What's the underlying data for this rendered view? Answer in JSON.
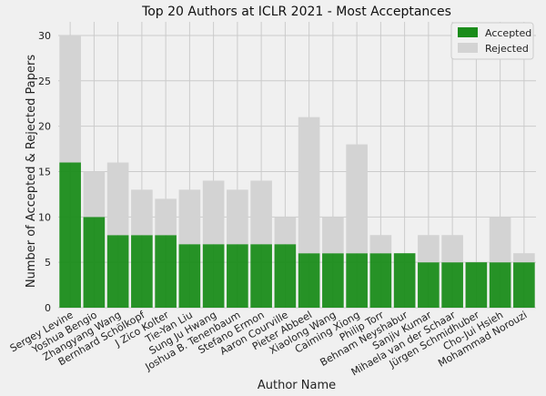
{
  "chart_data": {
    "type": "bar",
    "stacked": true,
    "title": "Top 20 Authors at ICLR 2021 - Most Acceptances",
    "xlabel": "Author Name",
    "ylabel": "Number of Accepted & Rejected Papers",
    "ylim": [
      0,
      31.5
    ],
    "yticks": [
      0,
      5,
      10,
      15,
      20,
      25,
      30
    ],
    "grid": true,
    "legend_position": "top-right",
    "categories": [
      "Sergey Levine",
      "Yoshua Bengio",
      "Zhangyang Wang",
      "Bernhard Schölkopf",
      "J Zico Kolter",
      "Tie-Yan Liu",
      "Sung Ju Hwang",
      "Joshua B. Tenenbaum",
      "Stefano Ermon",
      "Aaron Courville",
      "Pieter Abbeel",
      "Xiaolong Wang",
      "Caiming Xiong",
      "Philip Torr",
      "Behnam Neyshabur",
      "Sanjiv Kumar",
      "Mihaela van der Schaar",
      "Jürgen Schmidhuber",
      "Cho-Jui Hsieh",
      "Mohammad Norouzi"
    ],
    "series": [
      {
        "name": "Accepted",
        "color": "#1a8c1a",
        "values": [
          16,
          10,
          8,
          8,
          8,
          7,
          7,
          7,
          7,
          7,
          6,
          6,
          6,
          6,
          6,
          5,
          5,
          5,
          5,
          5
        ]
      },
      {
        "name": "Rejected",
        "color": "#d3d3d3",
        "values": [
          14,
          5,
          8,
          5,
          4,
          6,
          7,
          6,
          7,
          3,
          15,
          4,
          12,
          2,
          0,
          3,
          3,
          0,
          5,
          1
        ]
      }
    ]
  }
}
